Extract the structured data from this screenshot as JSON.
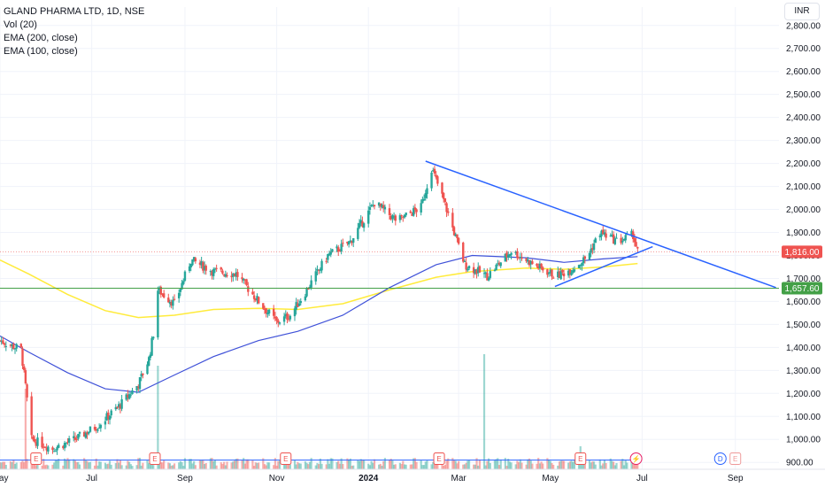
{
  "legend": {
    "symbol": "GLAND PHARMA LTD, 1D, NSE",
    "vol": "Vol (20)",
    "ema200": "EMA (200, close)",
    "ema100": "EMA (100, close)"
  },
  "currency": "INR",
  "colors": {
    "up": "#26a69a",
    "down": "#ef5350",
    "ema200": "#3f51d8",
    "ema100": "#ffeb3b",
    "trendline": "#2962ff",
    "support": "#43a047",
    "current_price_tag": "#ef5350",
    "support_tag": "#43a047",
    "volume_ma": "#2962ff"
  },
  "chart_data": {
    "type": "candlestick",
    "title": "GLAND PHARMA LTD, 1D, NSE",
    "x_axis": {
      "labels": [
        "May",
        "Jul",
        "Sep",
        "Nov",
        "2024",
        "Mar",
        "May",
        "Jul",
        "Sep"
      ],
      "start": "2023-05-01",
      "end": "2024-09-30"
    },
    "y_axis": {
      "ticks": [
        "900.00",
        "1,000.00",
        "1,100.00",
        "1,200.00",
        "1,300.00",
        "1,400.00",
        "1,500.00",
        "1,600.00",
        "1,700.00",
        "1,800.00",
        "1,900.00",
        "2,000.00",
        "2,100.00",
        "2,200.00",
        "2,300.00",
        "2,400.00",
        "2,500.00",
        "2,600.00",
        "2,700.00",
        "2,800.00"
      ],
      "range": [
        870,
        2880
      ],
      "unit": "INR"
    },
    "price_anchors": [
      {
        "date": "2023-05-01",
        "price": 1430
      },
      {
        "date": "2023-05-15",
        "price": 1390
      },
      {
        "date": "2023-05-18",
        "price": 1230
      },
      {
        "date": "2023-05-22",
        "price": 1000
      },
      {
        "date": "2023-06-05",
        "price": 960
      },
      {
        "date": "2023-06-20",
        "price": 1000
      },
      {
        "date": "2023-07-05",
        "price": 1060
      },
      {
        "date": "2023-07-20",
        "price": 1150
      },
      {
        "date": "2023-08-01",
        "price": 1240
      },
      {
        "date": "2023-08-08",
        "price": 1350
      },
      {
        "date": "2023-08-11",
        "price": 1460
      },
      {
        "date": "2023-08-14",
        "price": 1650
      },
      {
        "date": "2023-08-25",
        "price": 1590
      },
      {
        "date": "2023-09-05",
        "price": 1780
      },
      {
        "date": "2023-09-20",
        "price": 1730
      },
      {
        "date": "2023-10-05",
        "price": 1720
      },
      {
        "date": "2023-10-20",
        "price": 1600
      },
      {
        "date": "2023-11-01",
        "price": 1510
      },
      {
        "date": "2023-11-10",
        "price": 1540
      },
      {
        "date": "2023-11-20",
        "price": 1640
      },
      {
        "date": "2023-12-05",
        "price": 1800
      },
      {
        "date": "2023-12-20",
        "price": 1860
      },
      {
        "date": "2024-01-05",
        "price": 2030
      },
      {
        "date": "2024-01-20",
        "price": 1950
      },
      {
        "date": "2024-02-05",
        "price": 2010
      },
      {
        "date": "2024-02-12",
        "price": 2180
      },
      {
        "date": "2024-02-20",
        "price": 2040
      },
      {
        "date": "2024-03-05",
        "price": 1760
      },
      {
        "date": "2024-03-20",
        "price": 1710
      },
      {
        "date": "2024-04-05",
        "price": 1820
      },
      {
        "date": "2024-04-20",
        "price": 1760
      },
      {
        "date": "2024-05-05",
        "price": 1710
      },
      {
        "date": "2024-05-15",
        "price": 1740
      },
      {
        "date": "2024-05-25",
        "price": 1790
      },
      {
        "date": "2024-06-03",
        "price": 1900
      },
      {
        "date": "2024-06-15",
        "price": 1860
      },
      {
        "date": "2024-06-25",
        "price": 1890
      },
      {
        "date": "2024-06-28",
        "price": 1816
      }
    ],
    "ema200": [
      {
        "date": "2023-05-01",
        "value": 1450
      },
      {
        "date": "2023-05-20",
        "value": 1380
      },
      {
        "date": "2023-06-15",
        "value": 1290
      },
      {
        "date": "2023-07-10",
        "value": 1220
      },
      {
        "date": "2023-08-01",
        "value": 1205
      },
      {
        "date": "2023-08-25",
        "value": 1280
      },
      {
        "date": "2023-09-20",
        "value": 1360
      },
      {
        "date": "2023-10-20",
        "value": 1430
      },
      {
        "date": "2023-11-15",
        "value": 1470
      },
      {
        "date": "2023-12-15",
        "value": 1540
      },
      {
        "date": "2024-01-15",
        "value": 1660
      },
      {
        "date": "2024-02-15",
        "value": 1760
      },
      {
        "date": "2024-03-10",
        "value": 1800
      },
      {
        "date": "2024-04-15",
        "value": 1790
      },
      {
        "date": "2024-05-10",
        "value": 1770
      },
      {
        "date": "2024-06-05",
        "value": 1785
      },
      {
        "date": "2024-06-28",
        "value": 1795
      }
    ],
    "ema100": [
      {
        "date": "2023-05-01",
        "value": 1780
      },
      {
        "date": "2023-05-20",
        "value": 1720
      },
      {
        "date": "2023-06-15",
        "value": 1630
      },
      {
        "date": "2023-07-10",
        "value": 1560
      },
      {
        "date": "2023-08-01",
        "value": 1530
      },
      {
        "date": "2023-08-25",
        "value": 1540
      },
      {
        "date": "2023-09-20",
        "value": 1565
      },
      {
        "date": "2023-10-20",
        "value": 1570
      },
      {
        "date": "2023-11-15",
        "value": 1565
      },
      {
        "date": "2023-12-15",
        "value": 1590
      },
      {
        "date": "2024-01-15",
        "value": 1650
      },
      {
        "date": "2024-02-15",
        "value": 1705
      },
      {
        "date": "2024-03-10",
        "value": 1730
      },
      {
        "date": "2024-04-15",
        "value": 1745
      },
      {
        "date": "2024-05-10",
        "value": 1740
      },
      {
        "date": "2024-06-05",
        "value": 1750
      },
      {
        "date": "2024-06-28",
        "value": 1765
      }
    ],
    "volume_spikes": [
      {
        "date": "2023-05-18",
        "value": 3.5
      },
      {
        "date": "2023-08-14",
        "value": 4.5
      },
      {
        "date": "2024-03-18",
        "value": 5.0
      },
      {
        "date": "2024-05-21",
        "value": 1.0
      }
    ],
    "trendlines": [
      {
        "from": {
          "date": "2024-02-08",
          "price": 2210
        },
        "to": {
          "date": "2024-09-28",
          "price": 1660
        }
      },
      {
        "from": {
          "date": "2024-05-04",
          "price": 1665
        },
        "to": {
          "date": "2024-07-08",
          "price": 1838
        }
      }
    ],
    "support_level": 1657.6,
    "support_label": "1,657.60",
    "current_price": 1816.0,
    "current_price_label": "1,816.00",
    "events": [
      {
        "date": "2023-05-25",
        "label": "E",
        "kind": "earnings"
      },
      {
        "date": "2023-08-12",
        "label": "E",
        "kind": "earnings"
      },
      {
        "date": "2023-11-07",
        "label": "E",
        "kind": "earnings"
      },
      {
        "date": "2024-02-17",
        "label": "E",
        "kind": "earnings"
      },
      {
        "date": "2024-05-21",
        "label": "E",
        "kind": "earnings"
      },
      {
        "date": "2024-06-27",
        "label": "⚡",
        "kind": "split"
      },
      {
        "date": "2024-08-22",
        "label": "D",
        "kind": "dividend"
      },
      {
        "date": "2024-09-01",
        "label": "E",
        "kind": "earnings-upcoming"
      }
    ]
  }
}
